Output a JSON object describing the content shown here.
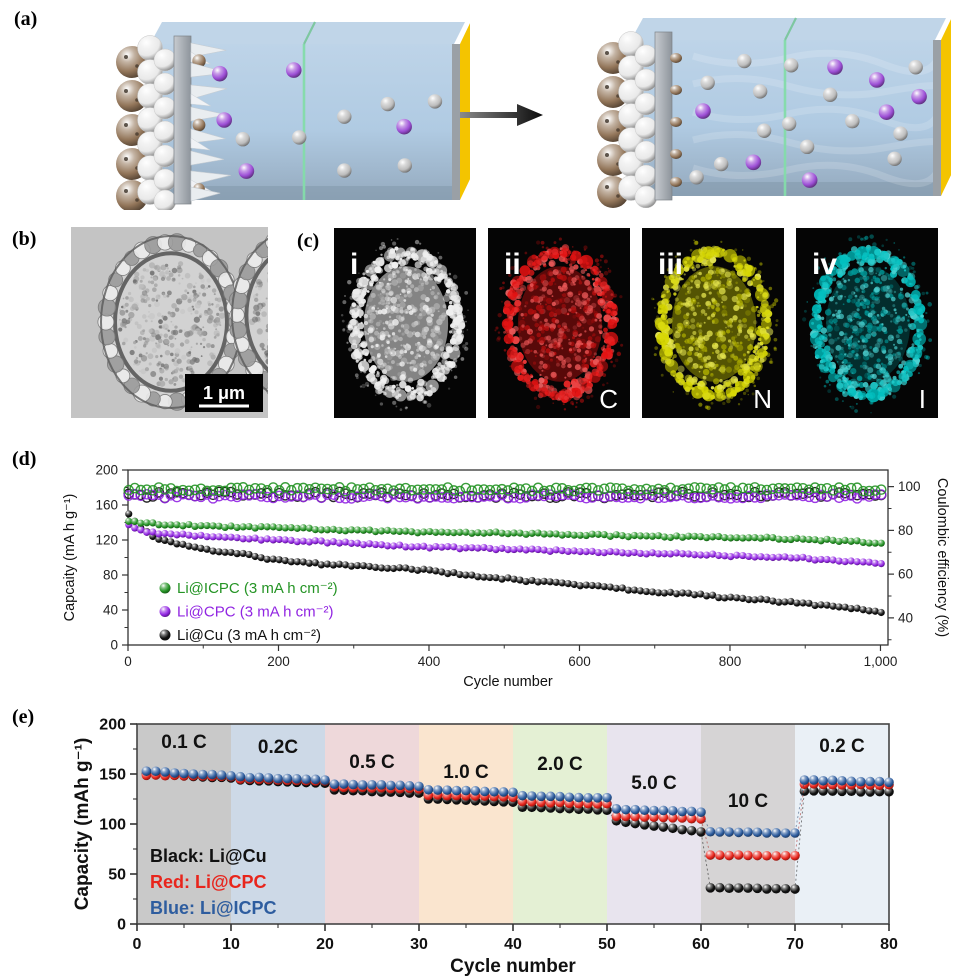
{
  "panel_labels": {
    "a": "(a)",
    "b": "(b)",
    "c": "(c)",
    "d": "(d)",
    "e": "(e)"
  },
  "colors": {
    "electrolyte": "#a9c6e0",
    "electrolyte_top": "#bdd3e7",
    "separator_green": "#84dcaa",
    "cathode_yellow": "#f4c400",
    "frame_gray": "#9aa0a6",
    "slab_gray": "#b3b9bf",
    "ion_gray": "#bdbdbd",
    "ion_purple": "#9d4fd6",
    "electrode_sphere_white": "#e9e9e9",
    "electrode_sphere_brown": "#93765a",
    "dendrite_white": "#e9edf0"
  },
  "panel_a": {
    "ions_before": {
      "gray": 7,
      "purple": 5
    },
    "ions_after": {
      "gray": 14,
      "purple": 7
    }
  },
  "panel_b": {
    "scale_bar_label": "1 μm"
  },
  "panel_c": {
    "subpanels": [
      {
        "index_label": "i",
        "element_label": "",
        "color": "#ededed"
      },
      {
        "index_label": "ii",
        "element_label": "C",
        "color": "#e31111"
      },
      {
        "index_label": "iii",
        "element_label": "N",
        "color": "#d6d600"
      },
      {
        "index_label": "iv",
        "element_label": "I",
        "color": "#00bfbf"
      }
    ]
  },
  "chart_data": [
    {
      "panel": "d",
      "type": "scatter",
      "xlabel": "Cycle number",
      "ylabel_left": "Capcaity (mA h g⁻¹)",
      "ylabel_right": "Coulombic efficiency (%)",
      "xlim": [
        0,
        1010
      ],
      "xticks": [
        0,
        200,
        400,
        600,
        800,
        1000
      ],
      "xtick_labels": [
        "0",
        "200",
        "400",
        "600",
        "800",
        "1,000"
      ],
      "x_minor": [
        100,
        300,
        500,
        700,
        900
      ],
      "ylim_left": [
        0,
        200
      ],
      "yticks_left": [
        0,
        40,
        80,
        120,
        160,
        200
      ],
      "y_minor_left": [
        20,
        60,
        100,
        140,
        180
      ],
      "ylim_right": [
        27.6,
        107.6
      ],
      "yticks_right": [
        40,
        60,
        80,
        100
      ],
      "y_minor_right": [
        30,
        50,
        70,
        90
      ],
      "point_step_cycles": 8,
      "series": [
        {
          "name": "Li@ICPC (3 mA h cm⁻²)",
          "color": "#259425",
          "marker": "sphere",
          "in_legend": true,
          "anchors_x": [
            0,
            20,
            50,
            100,
            150,
            200,
            300,
            400,
            500,
            600,
            700,
            800,
            900,
            1000
          ],
          "anchors_y": [
            142,
            139,
            138,
            136,
            135,
            134,
            131,
            129,
            128,
            126,
            124,
            123,
            121,
            117
          ],
          "jitter": 1.1
        },
        {
          "name": "Li@CPC (3 mA h cm⁻²)",
          "color": "#9125e2",
          "marker": "sphere",
          "in_legend": true,
          "anchors_x": [
            0,
            20,
            50,
            100,
            150,
            200,
            300,
            400,
            500,
            600,
            700,
            800,
            900,
            1000
          ],
          "anchors_y": [
            137,
            130,
            127,
            124,
            122,
            120,
            116,
            112,
            110,
            107,
            105,
            102,
            99,
            93
          ],
          "jitter": 1.2
        },
        {
          "name": "Li@Cu (3 mA h cm⁻²)",
          "color": "#111111",
          "marker": "sphere",
          "in_legend": true,
          "anchors_x": [
            0,
            10,
            30,
            50,
            100,
            150,
            200,
            250,
            300,
            350,
            400,
            450,
            500,
            550,
            600,
            650,
            700,
            750,
            800,
            850,
            900,
            950,
            1000
          ],
          "anchors_y": [
            150,
            140,
            125,
            119,
            110,
            104,
            97,
            93,
            90,
            88,
            85,
            80,
            76,
            72,
            68,
            65,
            61,
            58,
            54,
            51,
            47,
            43,
            38
          ],
          "jitter": 1.2
        },
        {
          "name": "Li@ICPC coulombic efficiency",
          "color": "#259425",
          "marker": "open",
          "axis": "right",
          "mean": 98.8,
          "jitter": 0.9
        },
        {
          "name": "Li@CPC coulombic efficiency",
          "color": "#9125e2",
          "marker": "open",
          "axis": "right",
          "mean": 95.6,
          "jitter": 1.0
        },
        {
          "name": "Li@Cu coulombic efficiency",
          "color": "#111111",
          "marker": "open",
          "axis": "right",
          "mean": 96.2,
          "jitter": 1.4
        }
      ]
    },
    {
      "panel": "e",
      "type": "scatter",
      "xlabel": "Cycle number",
      "ylabel": "Capacity (mAh g⁻¹)",
      "xlim": [
        0,
        80
      ],
      "xticks": [
        0,
        10,
        20,
        30,
        40,
        50,
        60,
        70,
        80
      ],
      "x_minor_step": 5,
      "ylim": [
        0,
        200
      ],
      "yticks": [
        0,
        50,
        100,
        150,
        200
      ],
      "y_minor_step": 25,
      "cycles_per_segment": 10,
      "regions": [
        {
          "label": "0.1 C",
          "start": 0,
          "end": 10,
          "color": "#c9c9c9"
        },
        {
          "label": "0.2C",
          "start": 10,
          "end": 20,
          "color": "#cdd9e7"
        },
        {
          "label": "0.5 C",
          "start": 20,
          "end": 30,
          "color": "#eed8da"
        },
        {
          "label": "1.0 C",
          "start": 30,
          "end": 40,
          "color": "#fae5cf"
        },
        {
          "label": "2.0 C",
          "start": 40,
          "end": 50,
          "color": "#e4f0d4"
        },
        {
          "label": "5.0 C",
          "start": 50,
          "end": 60,
          "color": "#e8e4ee"
        },
        {
          "label": "10 C",
          "start": 60,
          "end": 70,
          "color": "#d6d4d5"
        },
        {
          "label": "0.2 C",
          "start": 70,
          "end": 80,
          "color": "#eaf0f6"
        }
      ],
      "legend": [
        {
          "label": "Black: Li@Cu",
          "color": "#111111"
        },
        {
          "label": "Red: Li@CPC",
          "color": "#e8251c"
        },
        {
          "label": "Blue: Li@ICPC",
          "color": "#2e5d9f"
        }
      ],
      "series": [
        {
          "name": "Li@Cu",
          "color": "#111111",
          "segments": [
            [
              150,
              146
            ],
            [
              144,
              141
            ],
            [
              134,
              131
            ],
            [
              125,
              122
            ],
            [
              117,
              114
            ],
            [
              103,
              92
            ],
            [
              36,
              35
            ],
            [
              133,
              132
            ]
          ]
        },
        {
          "name": "Li@CPC",
          "color": "#e8251c",
          "segments": [
            [
              149,
              147
            ],
            [
              145,
              143
            ],
            [
              137,
              135
            ],
            [
              129,
              127
            ],
            [
              122,
              120
            ],
            [
              108,
              105
            ],
            [
              69,
              68
            ],
            [
              140,
              139
            ]
          ]
        },
        {
          "name": "Li@ICPC",
          "color": "#2e5d9f",
          "segments": [
            [
              153,
              148
            ],
            [
              147,
              144
            ],
            [
              140,
              138
            ],
            [
              134,
              132
            ],
            [
              128,
              126
            ],
            [
              115,
              112
            ],
            [
              92,
              91
            ],
            [
              144,
              142
            ]
          ]
        }
      ]
    }
  ]
}
